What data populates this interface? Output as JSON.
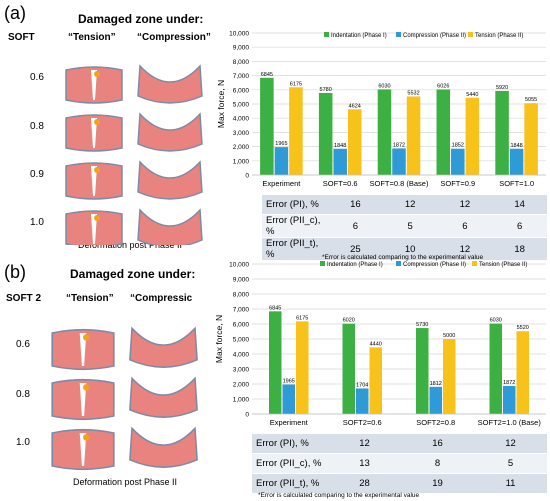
{
  "colors": {
    "indentation": "#3cb043",
    "compression": "#2e9ad6",
    "tension": "#f7c21a",
    "tissue": "#e8837f",
    "edge": "#7e8ba6"
  },
  "panel_a": {
    "label": "(a)",
    "header": "Damaged zone under:",
    "soft_label": "SOFT",
    "col_tension": "“Tension”",
    "col_compression": "“Compression”",
    "rows": [
      "0.6",
      "0.8",
      "0.9",
      "1.0"
    ],
    "caption": "Deformation post Phase II"
  },
  "panel_b": {
    "label": "(b)",
    "header": "Damaged zone under:",
    "soft_label": "SOFT 2",
    "col_tension": "“Tension”",
    "col_compression": "“Compressic",
    "rows": [
      "0.6",
      "0.8",
      "1.0"
    ],
    "caption": "Deformation post Phase II"
  },
  "chart_data": [
    {
      "type": "bar",
      "categories": [
        "Experiment",
        "SOFT=0.6",
        "SOFT=0.8 (Base)",
        "SOFT=0.9",
        "SOFT=1.0"
      ],
      "series": [
        {
          "name": "Indentation (Phase I)",
          "values": [
            6845,
            5780,
            6030,
            6026,
            5920
          ]
        },
        {
          "name": "Compression (Phase II)",
          "values": [
            1965,
            1848,
            1872,
            1852,
            1848
          ]
        },
        {
          "name": "Tension (Phase II)",
          "values": [
            6175,
            4624,
            5532,
            5440,
            5055
          ]
        }
      ],
      "ylabel": "Max force, N",
      "ylim": [
        0,
        10000
      ],
      "yticks": [
        "0",
        "1,000",
        "2,000",
        "3,000",
        "4,000",
        "5,000",
        "6,000",
        "7,000",
        "8,000",
        "9,000",
        "10,000"
      ],
      "grid": true,
      "legend": "top",
      "table": {
        "rows": [
          {
            "label": "Error (PI), %",
            "values": [
              "16",
              "12",
              "12",
              "14"
            ]
          },
          {
            "label": "Error (PII_c), %",
            "values": [
              "6",
              "5",
              "6",
              "6"
            ]
          },
          {
            "label": "Error (PII_t), %",
            "values": [
              "25",
              "10",
              "12",
              "18"
            ]
          }
        ]
      },
      "note": "*Error is calculated comparing to the experimental value"
    },
    {
      "type": "bar",
      "categories": [
        "Experiment",
        "SOFT2=0.6",
        "SOFT2=0.8",
        "SOFT2=1.0 (Base)"
      ],
      "series": [
        {
          "name": "Indentation (Phase I)",
          "values": [
            6845,
            6020,
            5730,
            6030
          ]
        },
        {
          "name": "Compression (Phase II)",
          "values": [
            1965,
            1704,
            1812,
            1872
          ]
        },
        {
          "name": "Tension (Phase II)",
          "values": [
            6175,
            4440,
            5000,
            5520
          ]
        }
      ],
      "ylabel": "Max force, N",
      "ylim": [
        0,
        10000
      ],
      "yticks": [
        "0",
        "1,000",
        "2,000",
        "3,000",
        "4,000",
        "5,000",
        "6,000",
        "7,000",
        "8,000",
        "9,000",
        "10,000"
      ],
      "grid": true,
      "legend": "top",
      "table": {
        "rows": [
          {
            "label": "Error (PI), %",
            "values": [
              "12",
              "16",
              "12"
            ]
          },
          {
            "label": "Error (PII_c), %",
            "values": [
              "13",
              "8",
              "5"
            ]
          },
          {
            "label": "Error (PII_t), %",
            "values": [
              "28",
              "19",
              "11"
            ]
          }
        ]
      },
      "note": "*Error is calculated comparing to the experimental value"
    }
  ]
}
